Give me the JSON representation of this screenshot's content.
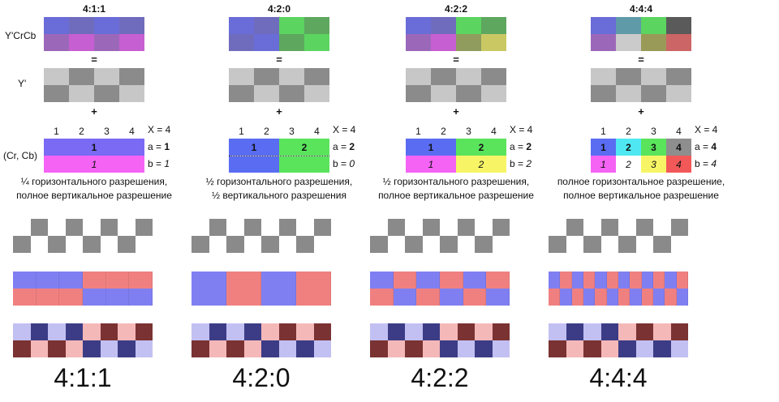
{
  "row_labels": {
    "ycrcb": "Y'CrCb",
    "y": "Y'",
    "crcb": "(Cr, Cb)"
  },
  "operators": {
    "equals": "=",
    "plus": "+"
  },
  "schemes": [
    {
      "title": "4:1:1",
      "ycrcb_colors": [
        "#6a6cd8",
        "#6f6cbd",
        "#6a6cd8",
        "#6f6cbd",
        "#9b68b9",
        "#c65fd1",
        "#9b68b9",
        "#c65fd1"
      ],
      "nums": [
        "1",
        "2",
        "3",
        "4"
      ],
      "x_label": "X = 4",
      "chroma_a": [
        {
          "text": "1",
          "bold": true,
          "color": "#7a6af4",
          "span": 4
        }
      ],
      "chroma_b": [
        {
          "text": "1",
          "italic": true,
          "color": "#f563f5",
          "span": 4
        }
      ],
      "a_label": "a = ",
      "a_val": "1",
      "b_label": "b = ",
      "b_val": "1",
      "desc_line1": "¼ горизонтального разрешения,",
      "desc_line2": "полное вертикальное разрешение",
      "bottom_label": "4:1:1"
    },
    {
      "title": "4:2:0",
      "ycrcb_colors": [
        "#6a6cd8",
        "#6f6cbd",
        "#5bd460",
        "#5ea75f",
        "#6f6cbd",
        "#6a6cd8",
        "#5ea75f",
        "#5bd460"
      ],
      "nums": [
        "1",
        "2",
        "3",
        "4"
      ],
      "x_label": "X = 4",
      "chroma_a": [
        {
          "text": "1",
          "bold": true,
          "color": "#5a6cf2",
          "span": 2
        },
        {
          "text": "2",
          "bold": true,
          "color": "#5ae45c",
          "span": 2
        }
      ],
      "chroma_b": [],
      "a_label": "a = ",
      "a_val": "2",
      "b_label": "b = ",
      "b_val": "0",
      "desc_line1": "½ горизонтального разрешения,",
      "desc_line2": "½ вертикального разрешения",
      "bottom_label": "4:2:0"
    },
    {
      "title": "4:2:2",
      "ycrcb_colors": [
        "#6a6cd8",
        "#6f6cbd",
        "#5bd460",
        "#5ea75f",
        "#9b68b9",
        "#c65fd1",
        "#8f9c5d",
        "#c9c862"
      ],
      "nums": [
        "1",
        "2",
        "3",
        "4"
      ],
      "x_label": "X = 4",
      "chroma_a": [
        {
          "text": "1",
          "bold": true,
          "color": "#5a6cf2",
          "span": 2
        },
        {
          "text": "2",
          "bold": true,
          "color": "#5ae45c",
          "span": 2
        }
      ],
      "chroma_b": [
        {
          "text": "1",
          "italic": true,
          "color": "#f563f5",
          "span": 2
        },
        {
          "text": "2",
          "italic": true,
          "color": "#f7f566",
          "span": 2
        }
      ],
      "a_label": "a = ",
      "a_val": "2",
      "b_label": "b = ",
      "b_val": "2",
      "desc_line1": "½ горизонтального разрешения,",
      "desc_line2": "полное вертикальное разрешение",
      "bottom_label": "4:2:2"
    },
    {
      "title": "4:4:4",
      "ycrcb_colors": [
        "#6a6cd8",
        "#5f9aa9",
        "#5bd460",
        "#5a5a5a",
        "#9b68b9",
        "#cbcbcb",
        "#9a9a58",
        "#cc6565"
      ],
      "nums": [
        "1",
        "2",
        "3",
        "4"
      ],
      "x_label": "X = 4",
      "chroma_a": [
        {
          "text": "1",
          "bold": true,
          "color": "#5a6cf2",
          "span": 1
        },
        {
          "text": "2",
          "bold": true,
          "color": "#4fe8f2",
          "span": 1
        },
        {
          "text": "3",
          "bold": true,
          "color": "#5ae45c",
          "span": 1
        },
        {
          "text": "4",
          "bold": true,
          "color": "#8e8e8e",
          "span": 1
        }
      ],
      "chroma_b": [
        {
          "text": "1",
          "italic": true,
          "color": "#f563f5",
          "span": 1
        },
        {
          "text": "2",
          "italic": true,
          "color": "#ffffff",
          "span": 1
        },
        {
          "text": "3",
          "italic": true,
          "color": "#f7f566",
          "span": 1
        },
        {
          "text": "4",
          "italic": true,
          "color": "#f25858",
          "span": 1
        }
      ],
      "a_label": "a = ",
      "a_val": "4",
      "b_label": "b = ",
      "b_val": "4",
      "desc_line1": "полное горизонтальное разрешение,",
      "desc_line2": "полное вертикальное разрешение",
      "bottom_label": "4:4:4"
    }
  ],
  "colors": {
    "luma_light": "#c7c7c7",
    "luma_dark": "#8b8b8b",
    "checker": "#8a8a8a",
    "blue": "#7f7ff2",
    "red": "#f08080",
    "pale_blue": "#c2c0f2",
    "navy": "#3c3c86",
    "pink": "#f5b8b8",
    "maroon": "#7b3232"
  },
  "patterns": {
    "s1_row1": [
      "b",
      "b",
      "b",
      "r",
      "r",
      "r"
    ],
    "s1_row2": [
      "r",
      "r",
      "r",
      "b",
      "b",
      "b"
    ],
    "s2_row1": [
      "b",
      "r",
      "b",
      "r"
    ],
    "s2_row2": [
      "b",
      "r",
      "b",
      "r"
    ],
    "s3_row1": [
      "b",
      "r",
      "b",
      "r",
      "b",
      "r"
    ],
    "s3_row2": [
      "r",
      "b",
      "r",
      "b",
      "r",
      "b"
    ],
    "s4_row1": [
      "b",
      "r",
      "b",
      "r",
      "b",
      "r",
      "b",
      "r",
      "b",
      "r",
      "b",
      "r"
    ],
    "s4_row2": [
      "r",
      "b",
      "r",
      "b",
      "r",
      "b",
      "r",
      "b",
      "r",
      "b",
      "r",
      "b"
    ],
    "dot_row1": [
      "pb",
      "nv",
      "pb",
      "nv",
      "pk",
      "mr",
      "pk",
      "mr"
    ],
    "dot_row2": [
      "mr",
      "pk",
      "mr",
      "pk",
      "nv",
      "pb",
      "nv",
      "pb"
    ]
  }
}
